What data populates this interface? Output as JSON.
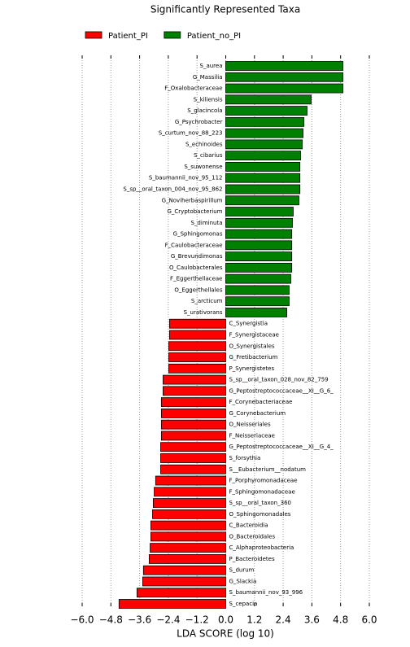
{
  "chart_data": {
    "type": "hbar",
    "title": "Significantly Represented Taxa",
    "x_label": "LDA SCORE (log 10)",
    "xlim": [
      -6,
      6
    ],
    "xticks": [
      {
        "value": -6,
        "label": "−6.0"
      },
      {
        "value": -4.8,
        "label": "−4.8"
      },
      {
        "value": -3.6,
        "label": "−3.6"
      },
      {
        "value": -2.4,
        "label": "−2.4"
      },
      {
        "value": -1.2,
        "label": "−1.2"
      },
      {
        "value": 0,
        "label": "0.0"
      },
      1.2,
      2.4,
      3.6,
      4.8,
      {
        "value": 6,
        "label": "6.0"
      }
    ],
    "grid": true,
    "legend": "top",
    "series": [
      {
        "name": "Patient_PI",
        "color": "#ff0000",
        "categories": [
          "C_Synergistia",
          "F_Synergistaceae",
          "O_Synergistales",
          "G_Fretibacterium",
          "P_Synergistetes",
          "S_sp__oral_taxon_028_nov_82_759",
          "G_Peptostreptococcaceae__XI__G_6_",
          "F_Corynebacteriaceae",
          "G_Corynebacterium",
          "O_Neisseriales",
          "F_Neisseriaceae",
          "G_Peptostreptococcaceae__XI__G_4_",
          "S_forsythia",
          "S__Eubacterium__nodatum",
          "F_Porphyromonadaceae",
          "F_Sphingomonadaceae",
          "S_sp__oral_taxon_360",
          "O_Sphingomonadales",
          "C_Bacteroidia",
          "O_Bacteroidales",
          "C_Alphaproteobacteria",
          "P_Bacteroidetes",
          "S_durum",
          "G_Slackia",
          "S_baumannii_nov_93_996",
          "S_cepacia"
        ],
        "values": [
          -2.35,
          -2.35,
          -2.38,
          -2.38,
          -2.38,
          -2.62,
          -2.62,
          -2.69,
          -2.69,
          -2.69,
          -2.69,
          -2.72,
          -2.72,
          -2.72,
          -2.93,
          -2.99,
          -3.03,
          -3.06,
          -3.13,
          -3.13,
          -3.16,
          -3.2,
          -3.44,
          -3.47,
          -3.71,
          -4.46
        ]
      },
      {
        "name": "Patient_no_PI",
        "color": "#008000",
        "categories": [
          "S_aurea",
          "G_Massilia",
          "F_Oxalobacteraceae",
          "S_kiliensis",
          "S_glacincola",
          "G_Psychrobacter",
          "S_curtum_nov_88_223",
          "S_echinoides",
          "S_cibarius",
          "S_suwonense",
          "S_baumannii_nov_95_112",
          "S_sp__oral_taxon_004_nov_95_862",
          "G_Noviherbaspirillum",
          "G_Cryptobacterium",
          "S_diminuta",
          "G_Sphingomonas",
          "F_Caulobacteraceae",
          "G_Brevundimonas",
          "O_Caulobacterales",
          "F_Eggerthellaceae",
          "O_Eggerthellales",
          "S_arcticum",
          "S_urativorans"
        ],
        "values": [
          4.9,
          4.9,
          4.9,
          3.57,
          3.4,
          3.27,
          3.23,
          3.2,
          3.13,
          3.1,
          3.1,
          3.1,
          3.06,
          2.82,
          2.79,
          2.76,
          2.76,
          2.76,
          2.76,
          2.72,
          2.65,
          2.65,
          2.55
        ]
      }
    ]
  }
}
